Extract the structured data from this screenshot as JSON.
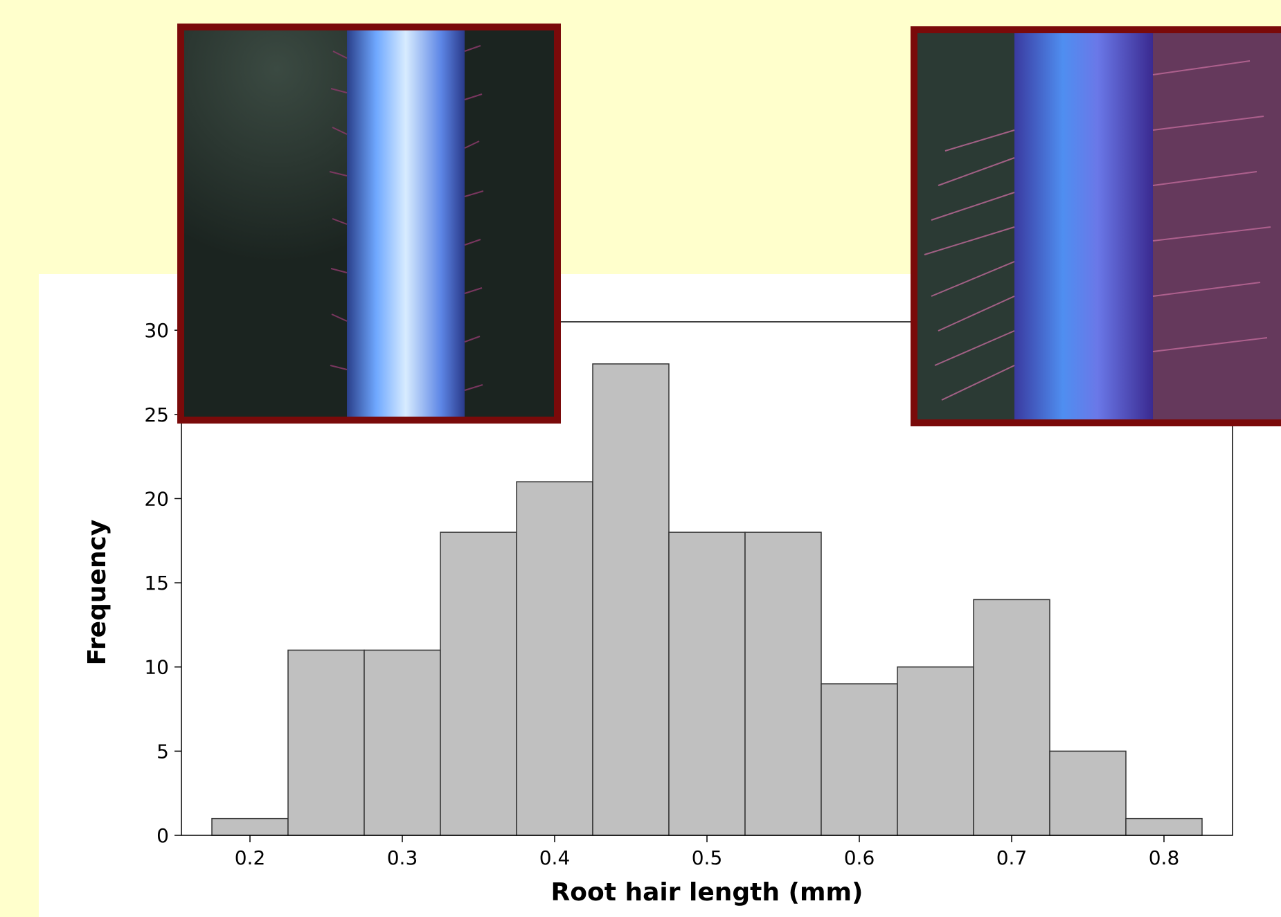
{
  "colors": {
    "page_background": "#FFFFCC",
    "panel_background": "#FFFFFF",
    "bar_fill": "#C0C0C0",
    "bar_stroke": "#333333",
    "photo_border": "#7A0A0A"
  },
  "photos": [
    {
      "name": "root-with-short-hairs-photo"
    },
    {
      "name": "root-with-long-hairs-photo"
    }
  ],
  "chart_data": {
    "type": "bar",
    "subtype": "histogram",
    "xlabel": "Root hair length (mm)",
    "ylabel": "Frequency",
    "bin_width": 0.05,
    "bins": [
      {
        "center": 0.2,
        "count": 1
      },
      {
        "center": 0.25,
        "count": 11
      },
      {
        "center": 0.3,
        "count": 11
      },
      {
        "center": 0.35,
        "count": 18
      },
      {
        "center": 0.4,
        "count": 21
      },
      {
        "center": 0.45,
        "count": 28
      },
      {
        "center": 0.5,
        "count": 18
      },
      {
        "center": 0.55,
        "count": 18
      },
      {
        "center": 0.6,
        "count": 9
      },
      {
        "center": 0.65,
        "count": 10
      },
      {
        "center": 0.7,
        "count": 14
      },
      {
        "center": 0.75,
        "count": 5
      },
      {
        "center": 0.8,
        "count": 1
      }
    ],
    "xticks": [
      "0.2",
      "0.3",
      "0.4",
      "0.5",
      "0.6",
      "0.7",
      "0.8"
    ],
    "yticks": [
      "0",
      "5",
      "10",
      "15",
      "20",
      "25",
      "30"
    ],
    "xlim": [
      0.155,
      0.845
    ],
    "ylim": [
      0,
      30.5
    ],
    "grid": false,
    "legend": "none"
  }
}
